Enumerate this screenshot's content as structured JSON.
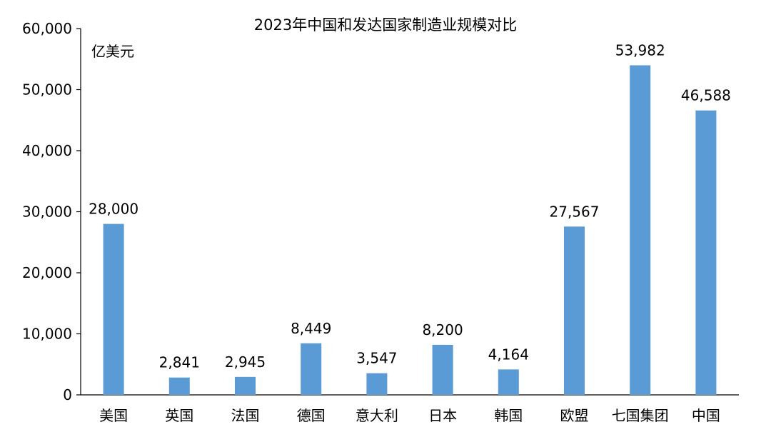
{
  "chart_data": {
    "type": "bar",
    "title": "2023年中国和发达国家制造业规模对比",
    "unit_label": "亿美元",
    "categories": [
      "美国",
      "英国",
      "法国",
      "德国",
      "意大利",
      "日本",
      "韩国",
      "欧盟",
      "七国集团",
      "中国"
    ],
    "values": [
      28000,
      2841,
      2945,
      8449,
      3547,
      8200,
      4164,
      27567,
      53982,
      46588
    ],
    "value_labels": [
      "28,000",
      "2,841",
      "2,945",
      "8,449",
      "3,547",
      "8,200",
      "4,164",
      "27,567",
      "53,982",
      "46,588"
    ],
    "ylim": [
      0,
      60000
    ],
    "yticks": [
      0,
      10000,
      20000,
      30000,
      40000,
      50000,
      60000
    ],
    "ytick_labels": [
      "0",
      "10,000",
      "20,000",
      "30,000",
      "40,000",
      "50,000",
      "60,000"
    ],
    "bar_color": "#5b9bd5",
    "axis_color": "#000000",
    "grid": false,
    "legend": "none"
  }
}
